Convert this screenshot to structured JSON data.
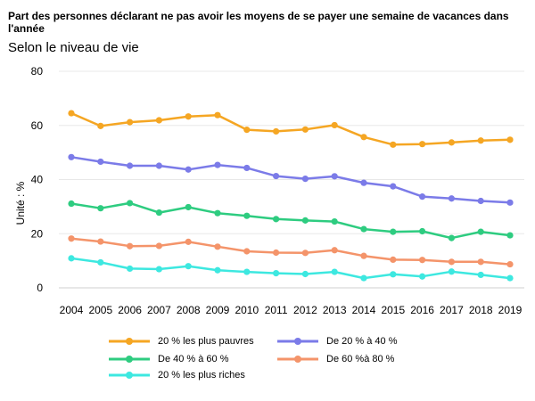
{
  "header": {
    "title": "Part des personnes déclarant ne pas avoir les moyens de se payer une semaine de vacances dans l'année",
    "subtitle": "Selon le niveau de vie"
  },
  "chart_data": {
    "type": "line",
    "title": "Part des personnes déclarant ne pas avoir les moyens de se payer une semaine de vacances dans l'année",
    "subtitle": "Selon le niveau de vie",
    "xlabel": "",
    "ylabel": "Unité : %",
    "ylim": [
      0,
      80
    ],
    "yticks": [
      0,
      20,
      40,
      60,
      80
    ],
    "grid": true,
    "legend_position": "bottom",
    "x": [
      "2004",
      "2005",
      "2006",
      "2007",
      "2008",
      "2009",
      "2010",
      "2011",
      "2012",
      "2013",
      "2014",
      "2015",
      "2016",
      "2017",
      "2018",
      "2019"
    ],
    "series": [
      {
        "name": "20 % les plus pauvres",
        "color": "#f5a623",
        "values": [
          64.5,
          59.8,
          61.2,
          61.9,
          63.3,
          63.8,
          58.4,
          57.8,
          58.5,
          60.1,
          55.7,
          52.9,
          53.1,
          53.7,
          54.4,
          54.7
        ]
      },
      {
        "name": "De 20 % à 40 %",
        "color": "#7b7be8",
        "values": [
          48.3,
          46.6,
          45.1,
          45.1,
          43.7,
          45.4,
          44.3,
          41.3,
          40.3,
          41.2,
          38.8,
          37.5,
          33.7,
          33.0,
          32.1,
          31.5
        ]
      },
      {
        "name": "De 40 % à 60 %",
        "color": "#2ecc80",
        "values": [
          31.1,
          29.4,
          31.3,
          27.8,
          29.8,
          27.6,
          26.6,
          25.4,
          24.9,
          24.5,
          21.7,
          20.7,
          20.9,
          18.4,
          20.7,
          19.4
        ]
      },
      {
        "name": "De 60 %à 80 %",
        "color": "#f4946a",
        "values": [
          18.2,
          17.1,
          15.4,
          15.5,
          17.0,
          15.2,
          13.5,
          13.0,
          12.9,
          13.9,
          11.8,
          10.4,
          10.3,
          9.6,
          9.6,
          8.7
        ]
      },
      {
        "name": "20 % les plus riches",
        "color": "#3de8e0",
        "values": [
          10.9,
          9.4,
          7.1,
          6.9,
          8.0,
          6.5,
          5.9,
          5.4,
          5.1,
          5.9,
          3.6,
          5.0,
          4.2,
          6.0,
          4.8,
          3.6
        ]
      }
    ]
  }
}
